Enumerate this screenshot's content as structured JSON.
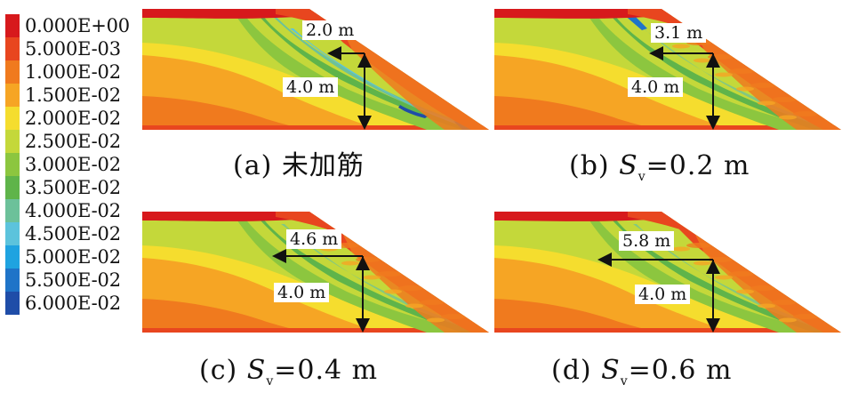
{
  "legend": {
    "items": [
      {
        "label": "0.000E+00",
        "color": "#d7191c"
      },
      {
        "label": "5.000E-03",
        "color": "#e8461f"
      },
      {
        "label": "1.000E-02",
        "color": "#f07a1e"
      },
      {
        "label": "1.500E-02",
        "color": "#f6a524"
      },
      {
        "label": "2.000E-02",
        "color": "#f5dd2e"
      },
      {
        "label": "2.500E-02",
        "color": "#c4d83a"
      },
      {
        "label": "3.000E-02",
        "color": "#8cc63f"
      },
      {
        "label": "3.500E-02",
        "color": "#5fb44a"
      },
      {
        "label": "4.000E-02",
        "color": "#6cc19a"
      },
      {
        "label": "4.500E-02",
        "color": "#5cc3dc"
      },
      {
        "label": "5.000E-02",
        "color": "#1fa3e0"
      },
      {
        "label": "5.500E-02",
        "color": "#1f74c8"
      },
      {
        "label": "6.000E-02",
        "color": "#1f4da8"
      }
    ]
  },
  "panels": [
    {
      "caption_prefix": "(a) ",
      "caption_text": "未加筋",
      "sv": "",
      "width_label": "2.0 m",
      "height_label": "4.0 m",
      "blue": true
    },
    {
      "caption_prefix": "(b) ",
      "caption_text": "",
      "sv": "=0.2 m",
      "width_label": "3.1 m",
      "height_label": "4.0 m",
      "blue": false
    },
    {
      "caption_prefix": "(c) ",
      "caption_text": "",
      "sv": "=0.4 m",
      "width_label": "4.6 m",
      "height_label": "4.0 m",
      "blue": false
    },
    {
      "caption_prefix": "(d) ",
      "caption_text": "",
      "sv": "=0.6 m",
      "width_label": "5.8 m",
      "height_label": "4.0 m",
      "blue": false
    }
  ],
  "symbols": {
    "S": "S",
    "v": "v"
  }
}
